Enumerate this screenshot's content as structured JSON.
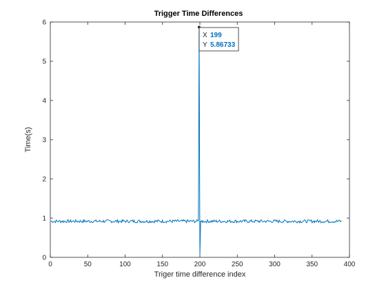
{
  "chart_data": {
    "type": "line",
    "title": "Trigger Time Differences",
    "xlabel": "Triger time difference index",
    "ylabel": "Time(s)",
    "xlim": [
      0,
      400
    ],
    "ylim": [
      0,
      6
    ],
    "xticks": [
      0,
      50,
      100,
      150,
      200,
      250,
      300,
      350,
      400
    ],
    "yticks": [
      0,
      1,
      2,
      3,
      4,
      5,
      6
    ],
    "grid": false,
    "series": [
      {
        "color": "#0072BD",
        "baseline": 0.92,
        "noise_amplitude": 0.04,
        "x_range": [
          1,
          389
        ],
        "points": [
          {
            "x": 197,
            "y": 0.93
          },
          {
            "x": 198,
            "y": 0.93
          },
          {
            "x": 199,
            "y": 5.86733
          },
          {
            "x": 200,
            "y": 0.05
          },
          {
            "x": 201,
            "y": 0.92
          }
        ]
      }
    ]
  },
  "datatip": {
    "x_key": "X",
    "x_value": "199",
    "y_key": "Y",
    "y_value": "5.86733"
  }
}
